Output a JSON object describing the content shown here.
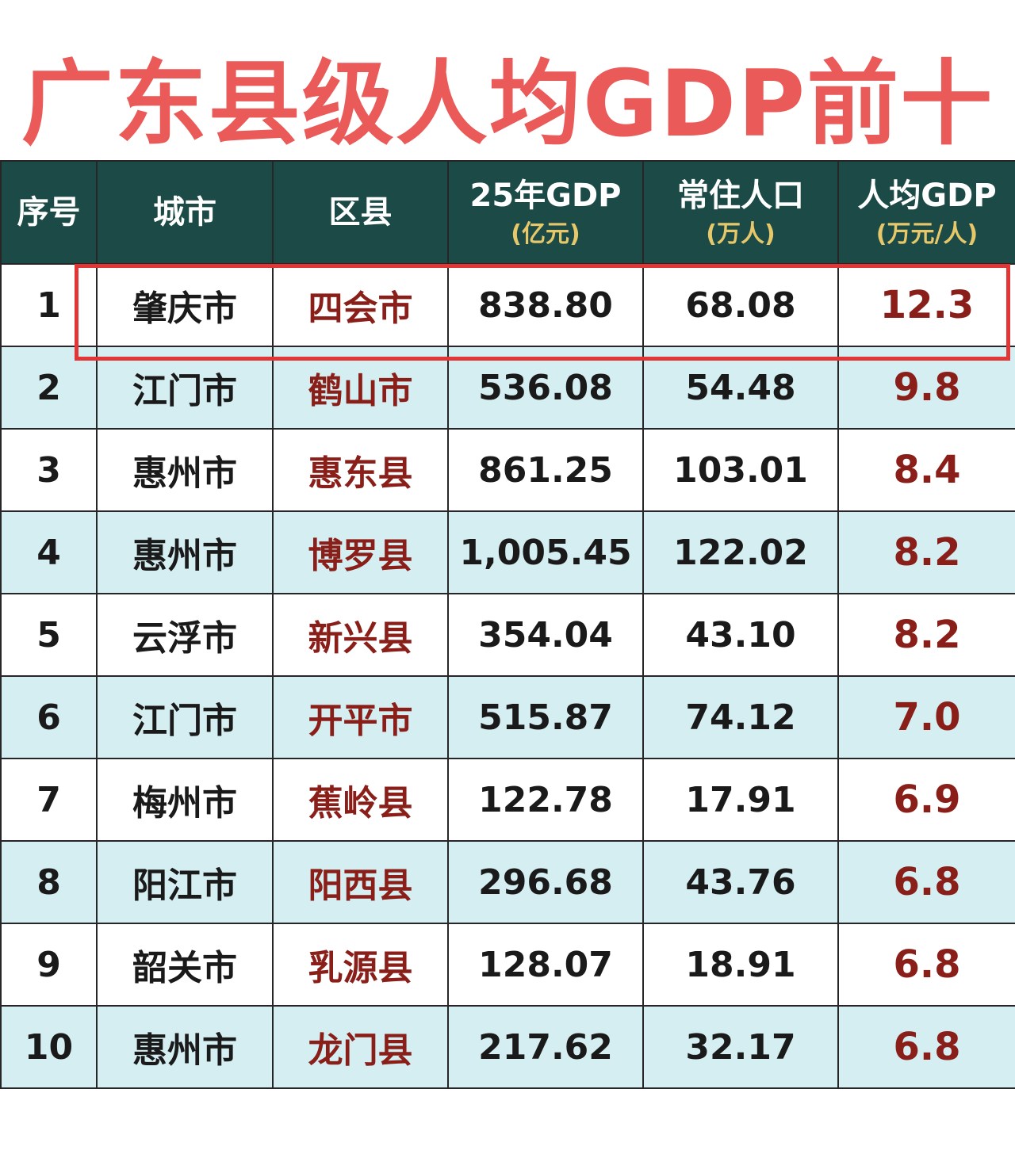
{
  "title": "广东县级人均GDP前十",
  "colors": {
    "title": "#ea5a58",
    "header_bg": "#1c4a46",
    "unit_text": "#e6c86a",
    "county_text": "#8a1f1a",
    "stripe": "#d4eef2",
    "highlight_border": "#e23636"
  },
  "headers": {
    "rank": "序号",
    "city": "城市",
    "county": "区县",
    "gdp": "25年GDP",
    "gdp_unit": "(亿元)",
    "population": "常住人口",
    "population_unit": "(万人)",
    "per_capita": "人均GDP",
    "per_capita_unit": "(万元/人)"
  },
  "highlighted_rank": "1",
  "rows": [
    {
      "rank": "1",
      "city": "肇庆市",
      "county": "四会市",
      "gdp": "838.80",
      "population": "68.08",
      "per_capita": "12.3"
    },
    {
      "rank": "2",
      "city": "江门市",
      "county": "鹤山市",
      "gdp": "536.08",
      "population": "54.48",
      "per_capita": "9.8"
    },
    {
      "rank": "3",
      "city": "惠州市",
      "county": "惠东县",
      "gdp": "861.25",
      "population": "103.01",
      "per_capita": "8.4"
    },
    {
      "rank": "4",
      "city": "惠州市",
      "county": "博罗县",
      "gdp": "1,005.45",
      "population": "122.02",
      "per_capita": "8.2"
    },
    {
      "rank": "5",
      "city": "云浮市",
      "county": "新兴县",
      "gdp": "354.04",
      "population": "43.10",
      "per_capita": "8.2"
    },
    {
      "rank": "6",
      "city": "江门市",
      "county": "开平市",
      "gdp": "515.87",
      "population": "74.12",
      "per_capita": "7.0"
    },
    {
      "rank": "7",
      "city": "梅州市",
      "county": "蕉岭县",
      "gdp": "122.78",
      "population": "17.91",
      "per_capita": "6.9"
    },
    {
      "rank": "8",
      "city": "阳江市",
      "county": "阳西县",
      "gdp": "296.68",
      "population": "43.76",
      "per_capita": "6.8"
    },
    {
      "rank": "9",
      "city": "韶关市",
      "county": "乳源县",
      "gdp": "128.07",
      "population": "18.91",
      "per_capita": "6.8"
    },
    {
      "rank": "10",
      "city": "惠州市",
      "county": "龙门县",
      "gdp": "217.62",
      "population": "32.17",
      "per_capita": "6.8"
    }
  ],
  "chart_data": {
    "type": "table",
    "title": "广东县级人均GDP前十",
    "columns": [
      "序号",
      "城市",
      "区县",
      "25年GDP (亿元)",
      "常住人口 (万人)",
      "人均GDP (万元/人)"
    ],
    "rows": [
      [
        1,
        "肇庆市",
        "四会市",
        838.8,
        68.08,
        12.3
      ],
      [
        2,
        "江门市",
        "鹤山市",
        536.08,
        54.48,
        9.8
      ],
      [
        3,
        "惠州市",
        "惠东县",
        861.25,
        103.01,
        8.4
      ],
      [
        4,
        "惠州市",
        "博罗县",
        1005.45,
        122.02,
        8.2
      ],
      [
        5,
        "云浮市",
        "新兴县",
        354.04,
        43.1,
        8.2
      ],
      [
        6,
        "江门市",
        "开平市",
        515.87,
        74.12,
        7.0
      ],
      [
        7,
        "梅州市",
        "蕉岭县",
        122.78,
        17.91,
        6.9
      ],
      [
        8,
        "阳江市",
        "阳西县",
        296.68,
        43.76,
        6.8
      ],
      [
        9,
        "韶关市",
        "乳源县",
        128.07,
        18.91,
        6.8
      ],
      [
        10,
        "惠州市",
        "龙门县",
        217.62,
        32.17,
        6.8
      ]
    ]
  }
}
